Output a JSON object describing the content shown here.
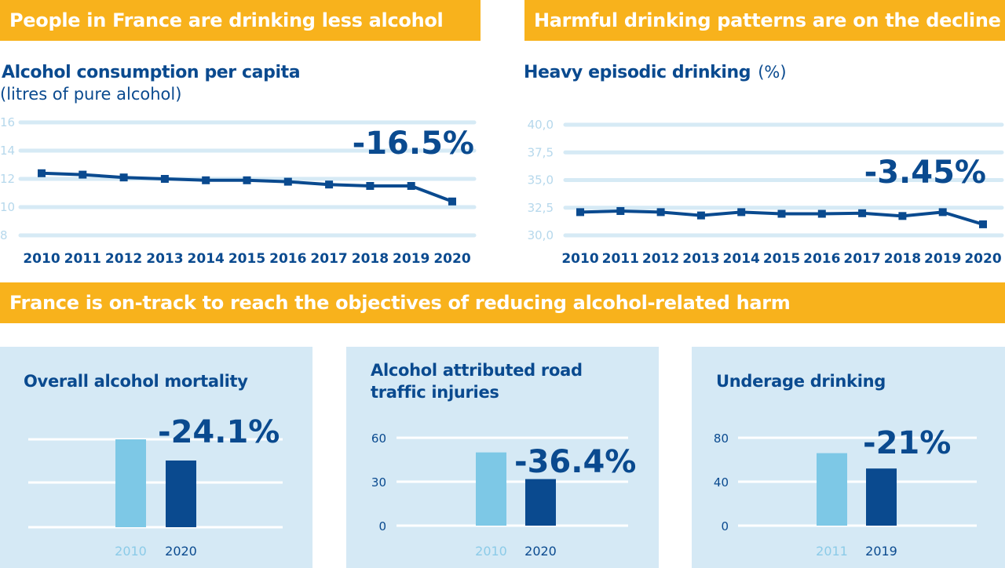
{
  "header_left": {
    "title": "People in France are drinking less alcohol"
  },
  "header_right": {
    "title": "Harmful drinking patterns are on the decline"
  },
  "header_middle": {
    "title": "France is on-track to reach the objectives of reducing alcohol-related harm"
  },
  "colors": {
    "banner": "#f8b21c",
    "dark_blue": "#0a4a8f",
    "light_blue": "#7dc8e6",
    "grid": "#d6eaf5",
    "panel_bg": "#d5e9f5",
    "tick_light": "#b6d8ec"
  },
  "chart_data": [
    {
      "type": "line",
      "title": "Alcohol consumption per capita",
      "subtitle": "(litres of pure alcohol)",
      "x": [
        "2010",
        "2011",
        "2012",
        "2013",
        "2014",
        "2015",
        "2016",
        "2017",
        "2018",
        "2019",
        "2020"
      ],
      "y": [
        12.4,
        12.3,
        12.1,
        12.0,
        11.9,
        11.9,
        11.8,
        11.6,
        11.5,
        11.5,
        10.4
      ],
      "ylim": [
        8,
        16
      ],
      "yticks": [
        "8",
        "10",
        "12",
        "14",
        "16"
      ],
      "annotation": "-16.5%",
      "grid": true
    },
    {
      "type": "line",
      "title": "Heavy episodic drinking",
      "title_unit": "(%)",
      "x": [
        "2010",
        "2011",
        "2012",
        "2013",
        "2014",
        "2015",
        "2016",
        "2017",
        "2018",
        "2019",
        "2020"
      ],
      "y": [
        32.1,
        32.2,
        32.1,
        31.8,
        32.1,
        31.95,
        31.95,
        32.0,
        31.75,
        32.1,
        31.0
      ],
      "ylim": [
        30.0,
        40.0
      ],
      "yticks": [
        "30,0",
        "32,5",
        "35,0",
        "37,5",
        "40,0"
      ],
      "annotation": "-3.45%",
      "grid": true
    },
    {
      "type": "bar",
      "title": "Overall alcohol mortality",
      "categories": [
        "2010",
        "2020"
      ],
      "values": [
        100,
        75.9
      ],
      "annotation": "-24.1%",
      "grid": true
    },
    {
      "type": "bar",
      "title": "Alcohol attributed road traffic injuries",
      "categories": [
        "2010",
        "2020"
      ],
      "values": [
        50,
        31.8
      ],
      "ylim": [
        0,
        60
      ],
      "yticks": [
        "0",
        "30",
        "60"
      ],
      "annotation": "-36.4%",
      "grid": true
    },
    {
      "type": "bar",
      "title": "Underage drinking",
      "categories": [
        "2011",
        "2019"
      ],
      "values": [
        66,
        52
      ],
      "ylim": [
        0,
        80
      ],
      "yticks": [
        "0",
        "40",
        "80"
      ],
      "annotation": "-21%",
      "grid": true
    }
  ]
}
